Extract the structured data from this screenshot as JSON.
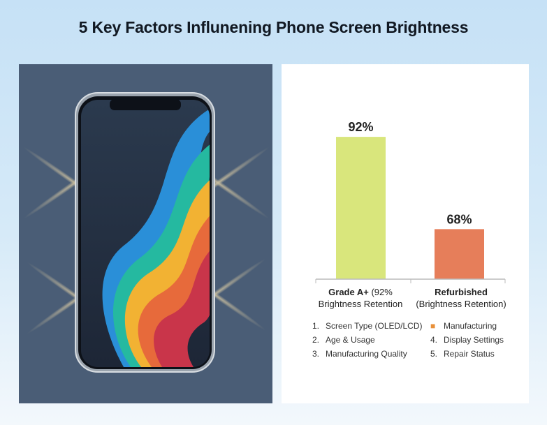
{
  "title": "5 Key Factors Influnening Phone Screen Brightness",
  "colors": {
    "grade_bar": "#d9e67c",
    "refurb_bar": "#e67e5a",
    "left_panel": "#4a5d76"
  },
  "chart_data": {
    "type": "bar",
    "categories": [
      "Grade A+ (92% Brightness Retention",
      "Refurbished (Brightness Retention)"
    ],
    "category_bold": [
      "Grade A+",
      "Refurbished"
    ],
    "category_rest": [
      "(92%",
      "Brightness Retention",
      "(Brightness Retention)"
    ],
    "values": [
      92,
      68
    ],
    "data_labels": [
      "92%",
      "68%"
    ],
    "ylim": [
      55,
      100
    ],
    "grid": false,
    "colors": [
      "#d9e67c",
      "#e67e5a"
    ]
  },
  "factors": [
    {
      "num": "1.",
      "label": "Screen Type (OLED/LCD)"
    },
    {
      "num": "2.",
      "label": "Age & Usage"
    },
    {
      "num": "3.",
      "label": "Manufacturing Quality"
    },
    {
      "num": "",
      "icon": "tools-icon",
      "label": "Manufacturing"
    },
    {
      "num": "4.",
      "label": "Display Settings"
    },
    {
      "num": "5.",
      "label": "Repair Status"
    }
  ]
}
